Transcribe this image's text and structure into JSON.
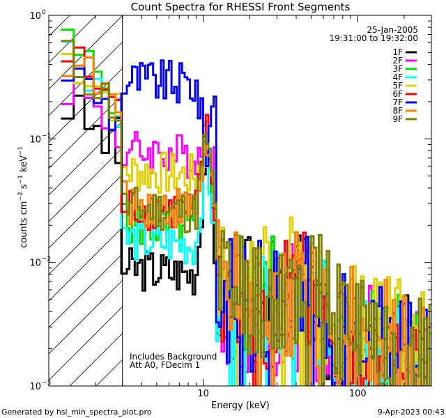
{
  "chart_data": {
    "type": "line",
    "title": "Count Spectra for RHESSI Front Segments",
    "xlabel": "Energy (keV)",
    "ylabel_parts": [
      "counts cm",
      "−2",
      " s",
      "−1",
      " keV",
      "−1"
    ],
    "xscale": "log",
    "yscale": "log",
    "xlim": [
      1.0,
      300.0
    ],
    "ylim": [
      0.001,
      1.0
    ],
    "x_ticks": [
      {
        "v": 10,
        "label": "10"
      },
      {
        "v": 100,
        "label": "100"
      }
    ],
    "y_ticks": [
      {
        "v": 1,
        "base": "10",
        "exp": "0"
      },
      {
        "v": 0.1,
        "base": "10",
        "exp": "−1"
      },
      {
        "v": 0.01,
        "base": "10",
        "exp": "−2"
      },
      {
        "v": 0.001,
        "base": "10",
        "exp": "−3"
      }
    ],
    "date_text": "25-Jan-2005",
    "time_text": "19:31:00 to 19:32:00",
    "annotations": [
      "Includes Background",
      "Att A0, FDecim 1"
    ],
    "shaded_region_max_kev": 3.0,
    "footer_left": "Generated by hsi_min_spectra_plot.pro",
    "footer_right": "9-Apr-2023 00:43",
    "series": [
      {
        "name": "1F",
        "color": "#000000",
        "lo": 0.2,
        "plateau": 0.009,
        "peak": 0.09,
        "tail": 0.006
      },
      {
        "name": "2F",
        "color": "#ff00ff",
        "lo": 0.3,
        "plateau": 0.08,
        "peak": 0.09,
        "tail": 0.005
      },
      {
        "name": "3F",
        "color": "#00e000",
        "lo": 0.6,
        "plateau": 0.02,
        "peak": 0.16,
        "tail": 0.006
      },
      {
        "name": "4F",
        "color": "#00ffff",
        "lo": 0.55,
        "plateau": 0.015,
        "peak": 0.08,
        "tail": 0.0045
      },
      {
        "name": "5F",
        "color": "#e0d000",
        "lo": 0.5,
        "plateau": 0.055,
        "peak": 0.09,
        "tail": 0.0075
      },
      {
        "name": "6F",
        "color": "#ff0000",
        "lo": 0.5,
        "plateau": 0.028,
        "peak": 0.12,
        "tail": 0.006
      },
      {
        "name": "7F",
        "color": "#0000ff",
        "lo": 0.4,
        "plateau": 0.3,
        "peak": 0.08,
        "tail": 0.0055
      },
      {
        "name": "8F",
        "color": "#ff8000",
        "lo": 0.5,
        "plateau": 0.03,
        "peak": 0.1,
        "tail": 0.0065
      },
      {
        "name": "9F",
        "color": "#808000",
        "lo": 0.48,
        "plateau": 0.028,
        "peak": 0.11,
        "tail": 0.007
      }
    ]
  }
}
